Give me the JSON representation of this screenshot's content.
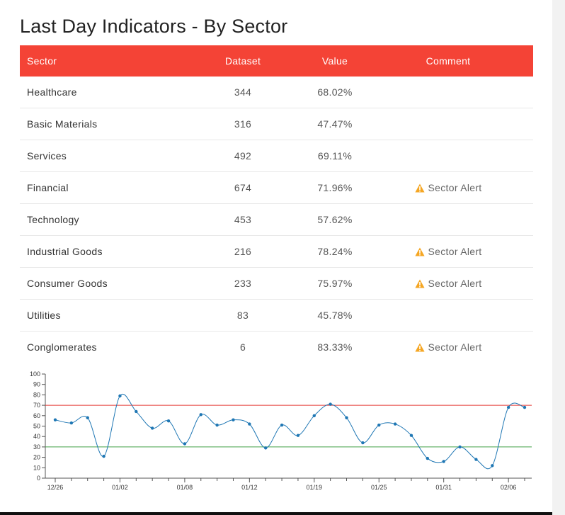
{
  "page": {
    "title": "Last Day Indicators - By Sector"
  },
  "table": {
    "headers": {
      "sector": "Sector",
      "dataset": "Dataset",
      "value": "Value",
      "comment": "Comment"
    },
    "rows": [
      {
        "sector": "Healthcare",
        "dataset": "344",
        "value": "68.02%",
        "comment": ""
      },
      {
        "sector": "Basic Materials",
        "dataset": "316",
        "value": "47.47%",
        "comment": ""
      },
      {
        "sector": "Services",
        "dataset": "492",
        "value": "69.11%",
        "comment": ""
      },
      {
        "sector": "Financial",
        "dataset": "674",
        "value": "71.96%",
        "comment": "Sector Alert"
      },
      {
        "sector": "Technology",
        "dataset": "453",
        "value": "57.62%",
        "comment": ""
      },
      {
        "sector": "Industrial Goods",
        "dataset": "216",
        "value": "78.24%",
        "comment": "Sector Alert"
      },
      {
        "sector": "Consumer Goods",
        "dataset": "233",
        "value": "75.97%",
        "comment": "Sector Alert"
      },
      {
        "sector": "Utilities",
        "dataset": "83",
        "value": "45.78%",
        "comment": ""
      },
      {
        "sector": "Conglomerates",
        "dataset": "6",
        "value": "83.33%",
        "comment": "Sector Alert"
      }
    ],
    "alert_icon": "warning-triangle-icon",
    "colors": {
      "header_bg": "#f44336",
      "alert_icon": "#f5a623"
    }
  },
  "chart_data": {
    "type": "line",
    "ylim": [
      0,
      100
    ],
    "yticks": [
      0,
      10,
      20,
      30,
      40,
      50,
      60,
      70,
      80,
      90,
      100
    ],
    "x_tick_labels": [
      "12/26",
      "01/02",
      "01/08",
      "01/12",
      "01/19",
      "01/25",
      "01/31",
      "02/06"
    ],
    "x_tick_positions": [
      0,
      4,
      8,
      12,
      16,
      20,
      24,
      28
    ],
    "values": [
      56,
      53,
      58,
      21,
      79,
      64,
      48,
      55,
      33,
      61,
      51,
      56,
      52,
      29,
      51,
      41,
      60,
      71,
      58,
      34,
      51,
      52,
      41,
      19,
      16,
      30,
      18,
      12,
      68,
      68
    ],
    "thresholds": [
      {
        "value": 70,
        "color": "#e53935"
      },
      {
        "value": 30,
        "color": "#43a047"
      }
    ],
    "line_color": "#1f77b4"
  }
}
